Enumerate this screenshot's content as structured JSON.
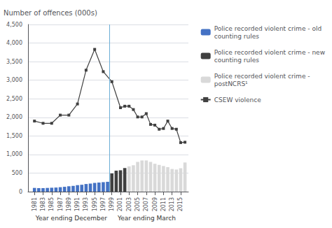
{
  "chart_data": {
    "type": "bar",
    "ylabel": "Number of offences (000s)",
    "annotations": [
      "Year ending December",
      "Year ending March"
    ],
    "series": [
      {
        "name": "Police recorded violent crime - old\ncounting rules",
        "type": "bar",
        "color": "#4472C4",
        "x": [
          1981,
          1982,
          1983,
          1984,
          1985,
          1986,
          1987,
          1988,
          1989,
          1990,
          1991,
          1992,
          1993,
          1994,
          1995,
          1996,
          1997,
          1998
        ],
        "values": [
          100,
          95,
          95,
          100,
          105,
          110,
          120,
          130,
          145,
          155,
          175,
          185,
          205,
          215,
          235,
          245,
          255,
          265
        ]
      },
      {
        "name": "Police recorded violent crime - new\ncounting rules",
        "type": "bar",
        "color": "#404040",
        "x": [
          1999,
          2000,
          2001,
          2002
        ],
        "values": [
          490,
          565,
          575,
          635
        ]
      },
      {
        "name": "Police recorded violent crime -\npostNCRS¹",
        "type": "bar",
        "color": "#D9D9D9",
        "x": [
          2003,
          2004,
          2005,
          2006,
          2007,
          2008,
          2009,
          2010,
          2011,
          2012,
          2013,
          2014,
          2015,
          2016
        ],
        "values": [
          680,
          710,
          800,
          840,
          840,
          800,
          750,
          720,
          690,
          660,
          610,
          595,
          630,
          785
        ]
      },
      {
        "name": "CSEW violence",
        "type": "line",
        "color": "#404040",
        "marker": "square",
        "x": [
          1981,
          1983,
          1985,
          1987,
          1989,
          1991,
          1993,
          1995,
          1997,
          1999,
          2001,
          2002,
          2003,
          2004,
          2005,
          2006,
          2007,
          2008,
          2009,
          2010,
          2011,
          2012,
          2013,
          2014,
          2015,
          2016
        ],
        "values": [
          1900,
          1840,
          1840,
          2060,
          2060,
          2360,
          3270,
          3830,
          3230,
          2960,
          2260,
          2300,
          2300,
          2210,
          2010,
          2010,
          2100,
          1810,
          1790,
          1680,
          1700,
          1900,
          1700,
          1680,
          1320,
          1330
        ]
      }
    ],
    "xlim": [
      1979.5,
      2016.8
    ],
    "xticks": [
      1981,
      1983,
      1985,
      1987,
      1989,
      1991,
      1993,
      1995,
      1997,
      1999,
      2001,
      2003,
      2005,
      2007,
      2009,
      2011,
      2013,
      2015
    ],
    "ylim": [
      0,
      4500
    ],
    "yticks": [
      0,
      500,
      {
        "value": 1000,
        "label": "1,000"
      },
      {
        "value": 1500,
        "label": "1,500"
      },
      {
        "value": 2000,
        "label": "2,000"
      },
      {
        "value": 2500,
        "label": "2,500"
      },
      {
        "value": 3000,
        "label": "3,000"
      },
      {
        "value": 3500,
        "label": "3,500"
      },
      {
        "value": 4000,
        "label": "4,000"
      },
      {
        "value": 4500,
        "label": "4,500"
      }
    ],
    "grid": true,
    "legend": "right",
    "vlines": [
      1998.5
    ]
  }
}
